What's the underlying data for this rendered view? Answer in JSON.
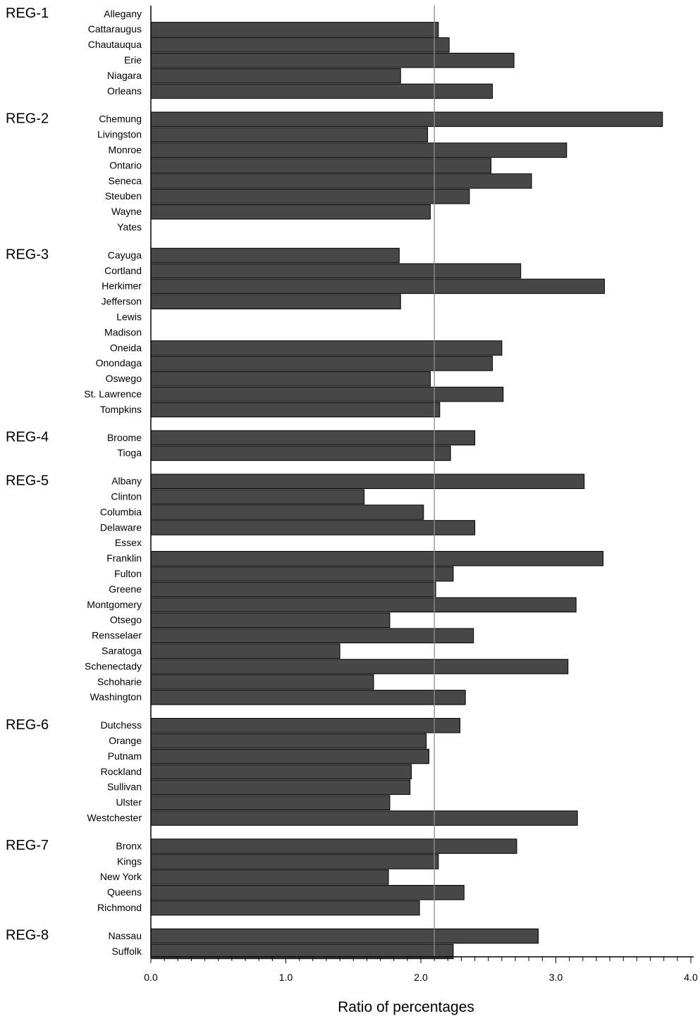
{
  "chart_data": {
    "type": "bar",
    "orientation": "horizontal",
    "xlabel": "Ratio of percentages",
    "xlim": [
      0,
      4.0
    ],
    "x_ticks": [
      "0.0",
      "1.0",
      "2.0",
      "3.0",
      "4.0"
    ],
    "x_minor_tick_step": 0.1,
    "reference_line": 2.1,
    "bar_color": "#474747",
    "groups": [
      {
        "region": "REG-1",
        "items": [
          {
            "label": "Allegany",
            "value": 0
          },
          {
            "label": "Cattaraugus",
            "value": 2.13
          },
          {
            "label": "Chautauqua",
            "value": 2.21
          },
          {
            "label": "Erie",
            "value": 2.69
          },
          {
            "label": "Niagara",
            "value": 1.85
          },
          {
            "label": "Orleans",
            "value": 2.53
          }
        ]
      },
      {
        "region": "REG-2",
        "items": [
          {
            "label": "Chemung",
            "value": 3.79
          },
          {
            "label": "Livingston",
            "value": 2.05
          },
          {
            "label": "Monroe",
            "value": 3.08
          },
          {
            "label": "Ontario",
            "value": 2.52
          },
          {
            "label": "Seneca",
            "value": 2.82
          },
          {
            "label": "Steuben",
            "value": 2.36
          },
          {
            "label": "Wayne",
            "value": 2.07
          },
          {
            "label": "Yates",
            "value": 0
          }
        ]
      },
      {
        "region": "REG-3",
        "items": [
          {
            "label": "Cayuga",
            "value": 1.84
          },
          {
            "label": "Cortland",
            "value": 2.74
          },
          {
            "label": "Herkimer",
            "value": 3.36
          },
          {
            "label": "Jefferson",
            "value": 1.85
          },
          {
            "label": "Lewis",
            "value": 0
          },
          {
            "label": "Madison",
            "value": 0
          },
          {
            "label": "Oneida",
            "value": 2.6
          },
          {
            "label": "Onondaga",
            "value": 2.53
          },
          {
            "label": "Oswego",
            "value": 2.07
          },
          {
            "label": "St. Lawrence",
            "value": 2.61
          },
          {
            "label": "Tompkins",
            "value": 2.14
          }
        ]
      },
      {
        "region": "REG-4",
        "items": [
          {
            "label": "Broome",
            "value": 2.4
          },
          {
            "label": "Tioga",
            "value": 2.22
          }
        ]
      },
      {
        "region": "REG-5",
        "items": [
          {
            "label": "Albany",
            "value": 3.21
          },
          {
            "label": "Clinton",
            "value": 1.58
          },
          {
            "label": "Columbia",
            "value": 2.02
          },
          {
            "label": "Delaware",
            "value": 2.4
          },
          {
            "label": "Essex",
            "value": 0
          },
          {
            "label": "Franklin",
            "value": 3.35
          },
          {
            "label": "Fulton",
            "value": 2.24
          },
          {
            "label": "Greene",
            "value": 2.11
          },
          {
            "label": "Montgomery",
            "value": 3.15
          },
          {
            "label": "Otsego",
            "value": 1.77
          },
          {
            "label": "Rensselaer",
            "value": 2.39
          },
          {
            "label": "Saratoga",
            "value": 1.4
          },
          {
            "label": "Schenectady",
            "value": 3.09
          },
          {
            "label": "Schoharie",
            "value": 1.65
          },
          {
            "label": "Washington",
            "value": 2.33
          }
        ]
      },
      {
        "region": "REG-6",
        "items": [
          {
            "label": "Dutchess",
            "value": 2.29
          },
          {
            "label": "Orange",
            "value": 2.04
          },
          {
            "label": "Putnam",
            "value": 2.06
          },
          {
            "label": "Rockland",
            "value": 1.93
          },
          {
            "label": "Sullivan",
            "value": 1.92
          },
          {
            "label": "Ulster",
            "value": 1.77
          },
          {
            "label": "Westchester",
            "value": 3.16
          }
        ]
      },
      {
        "region": "REG-7",
        "items": [
          {
            "label": "Bronx",
            "value": 2.71
          },
          {
            "label": "Kings",
            "value": 2.13
          },
          {
            "label": "New York",
            "value": 1.76
          },
          {
            "label": "Queens",
            "value": 2.32
          },
          {
            "label": "Richmond",
            "value": 1.99
          }
        ]
      },
      {
        "region": "REG-8",
        "items": [
          {
            "label": "Nassau",
            "value": 2.87
          },
          {
            "label": "Suffolk",
            "value": 2.24
          }
        ]
      }
    ]
  }
}
